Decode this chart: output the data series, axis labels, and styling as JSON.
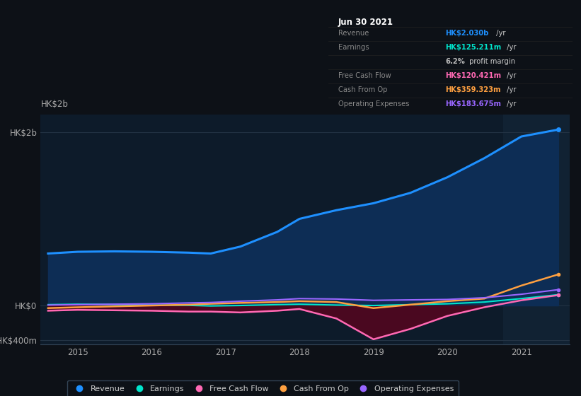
{
  "bg_color": "#0d1117",
  "plot_bg_color": "#0d1b2a",
  "title": "Jun 30 2021",
  "info_box": {
    "Revenue": {
      "label": "Revenue",
      "value": "HK$2.030b",
      "unit": " /yr",
      "color": "#1e90ff"
    },
    "Earnings": {
      "label": "Earnings",
      "value": "HK$125.211m",
      "unit": " /yr",
      "color": "#00e5cc"
    },
    "profit_margin": {
      "label": "",
      "value": "6.2%",
      "unit": " profit margin",
      "color": "#bbbbbb"
    },
    "Free Cash Flow": {
      "label": "Free Cash Flow",
      "value": "HK$120.421m",
      "unit": " /yr",
      "color": "#ff69b4"
    },
    "Cash From Op": {
      "label": "Cash From Op",
      "value": "HK$359.323m",
      "unit": " /yr",
      "color": "#ffa040"
    },
    "Operating Expenses": {
      "label": "Operating Expenses",
      "value": "HK$183.675m",
      "unit": " /yr",
      "color": "#9966ff"
    }
  },
  "years": [
    2014.6,
    2015.0,
    2015.5,
    2016.0,
    2016.5,
    2016.8,
    2017.2,
    2017.7,
    2018.0,
    2018.5,
    2019.0,
    2019.5,
    2020.0,
    2020.5,
    2021.0,
    2021.5
  ],
  "revenue": [
    600,
    620,
    625,
    620,
    610,
    600,
    680,
    850,
    1000,
    1100,
    1180,
    1300,
    1480,
    1700,
    1950,
    2030
  ],
  "earnings": [
    10,
    15,
    12,
    5,
    2,
    -5,
    0,
    10,
    15,
    5,
    0,
    10,
    20,
    40,
    80,
    125
  ],
  "free_cash_flow": [
    -60,
    -50,
    -55,
    -60,
    -70,
    -70,
    -80,
    -60,
    -40,
    -150,
    -390,
    -270,
    -120,
    -20,
    60,
    120
  ],
  "cash_from_op": [
    -30,
    -20,
    -10,
    0,
    10,
    20,
    30,
    40,
    50,
    40,
    -30,
    10,
    50,
    80,
    230,
    359
  ],
  "operating_expenses": [
    5,
    10,
    15,
    20,
    30,
    35,
    50,
    65,
    80,
    75,
    60,
    65,
    70,
    90,
    130,
    183
  ],
  "revenue_color": "#1e90ff",
  "earnings_color": "#00e5cc",
  "fcf_color": "#ff69b4",
  "cashop_color": "#ffa040",
  "opex_color": "#9966ff",
  "revenue_fill": "#0d2d55",
  "fcf_fill_neg": "#4a0820",
  "highlight_start": 2020.75,
  "highlight_end": 2021.65,
  "xlim": [
    2014.5,
    2021.65
  ],
  "ylim_min": -450,
  "ylim_max": 2200,
  "yticks": [
    -400,
    0,
    2000
  ],
  "ytick_labels": [
    "-HK$400m",
    "HK$0",
    "HK$2b"
  ],
  "xtick_years": [
    2015,
    2016,
    2017,
    2018,
    2019,
    2020,
    2021
  ]
}
